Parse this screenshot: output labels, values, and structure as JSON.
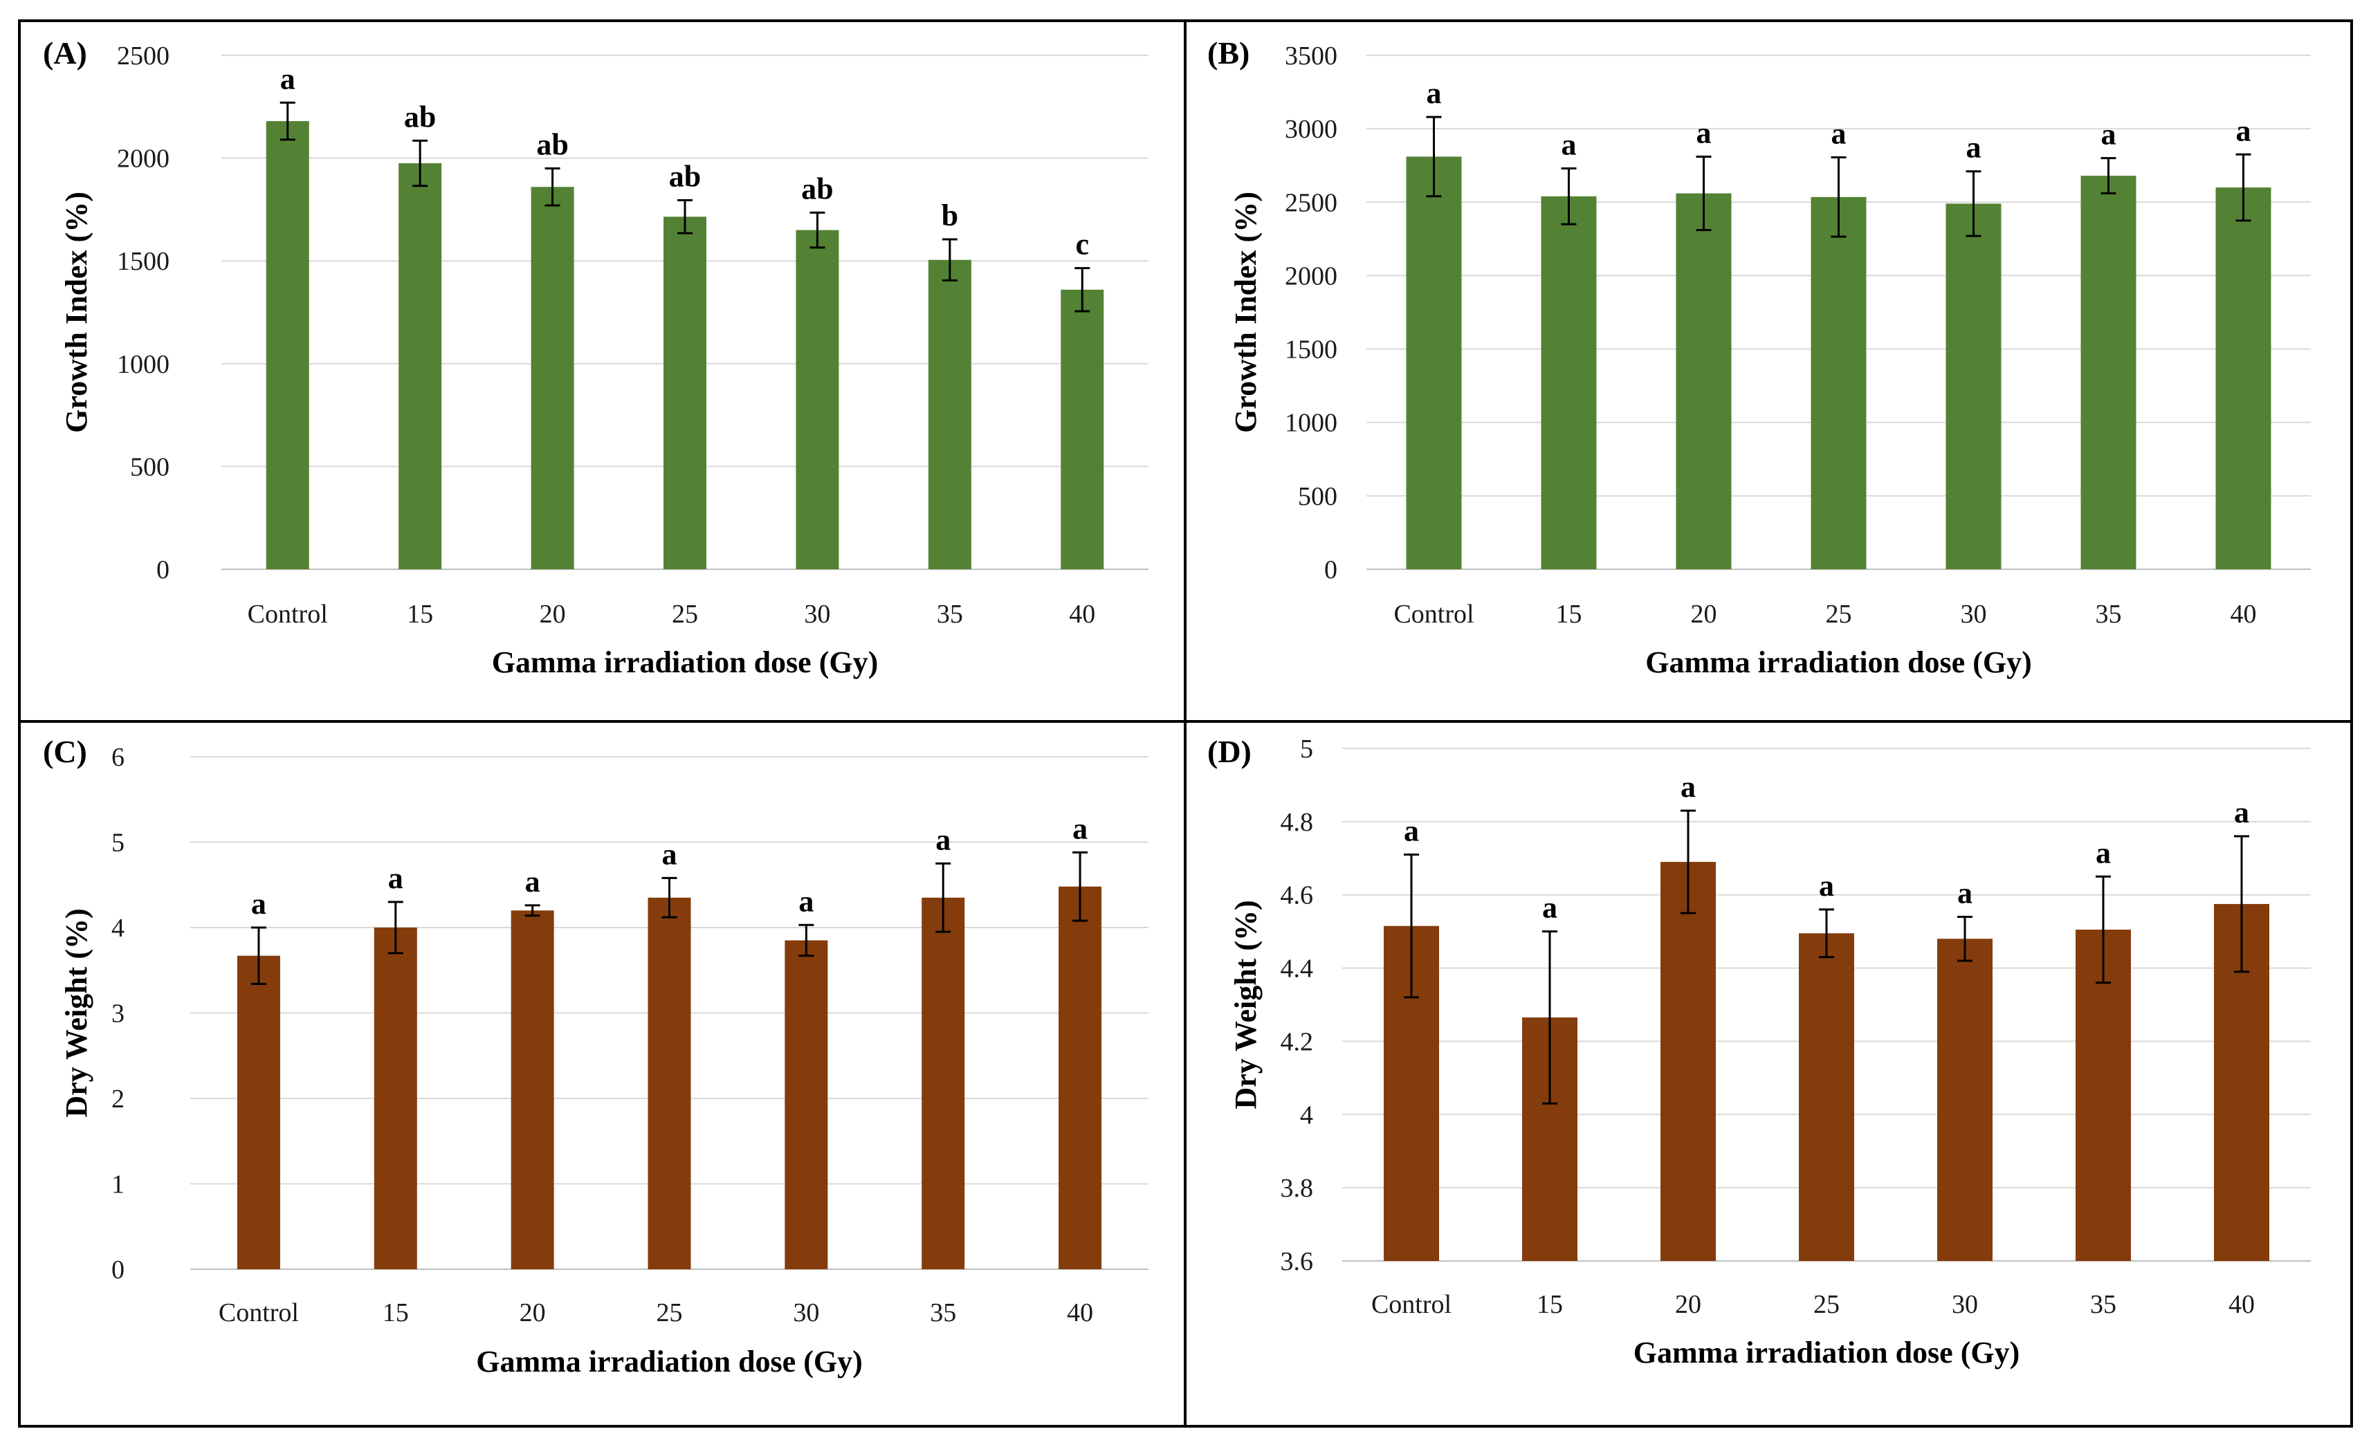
{
  "chart_data": [
    {
      "type": "bar",
      "panel_label": "(A)",
      "categories": [
        "Control",
        "15",
        "20",
        "25",
        "30",
        "35",
        "40"
      ],
      "values": [
        2180,
        1975,
        1860,
        1715,
        1650,
        1505,
        1360
      ],
      "errors": [
        90,
        110,
        90,
        80,
        85,
        100,
        105
      ],
      "significance": [
        "a",
        "ab",
        "ab",
        "ab",
        "ab",
        "b",
        "c"
      ],
      "xlabel": "Gamma irradiation dose (Gy)",
      "ylabel": "Growth Index (%)",
      "ylim": [
        0,
        2500
      ],
      "yticks": [
        0,
        500,
        1000,
        1500,
        2000,
        2500
      ],
      "ytick_labels": [
        "0",
        "500",
        "1000",
        "1500",
        "2000",
        "2500"
      ],
      "bar_color": "#548235",
      "grid": true
    },
    {
      "type": "bar",
      "panel_label": "(B)",
      "categories": [
        "Control",
        "15",
        "20",
        "25",
        "30",
        "35",
        "40"
      ],
      "values": [
        2810,
        2540,
        2560,
        2535,
        2490,
        2680,
        2600
      ],
      "errors": [
        270,
        190,
        250,
        270,
        220,
        120,
        225
      ],
      "significance": [
        "a",
        "a",
        "a",
        "a",
        "a",
        "a",
        "a"
      ],
      "xlabel": "Gamma irradiation dose (Gy)",
      "ylabel": "Growth Index (%)",
      "ylim": [
        0,
        3500
      ],
      "yticks": [
        0,
        500,
        1000,
        1500,
        2000,
        2500,
        3000,
        3500
      ],
      "ytick_labels": [
        "0",
        "500",
        "1000",
        "1500",
        "2000",
        "2500",
        "3000",
        "3500"
      ],
      "bar_color": "#548235",
      "grid": true
    },
    {
      "type": "bar",
      "panel_label": "(C)",
      "categories": [
        "Control",
        "15",
        "20",
        "25",
        "30",
        "35",
        "40"
      ],
      "values": [
        3.67,
        4.0,
        4.2,
        4.35,
        3.85,
        4.35,
        4.48
      ],
      "errors": [
        0.33,
        0.3,
        0.06,
        0.23,
        0.18,
        0.4,
        0.4
      ],
      "significance": [
        "a",
        "a",
        "a",
        "a",
        "a",
        "a",
        "a"
      ],
      "xlabel": "Gamma irradiation dose (Gy)",
      "ylabel": "Dry Weight (%)",
      "ylim": [
        0,
        6
      ],
      "yticks": [
        0,
        1,
        2,
        3,
        4,
        5,
        6
      ],
      "ytick_labels": [
        "0",
        "1",
        "2",
        "3",
        "4",
        "5",
        "6"
      ],
      "bar_color": "#843C0C",
      "grid": true
    },
    {
      "type": "bar",
      "panel_label": "(D)",
      "categories": [
        "Control",
        "15",
        "20",
        "25",
        "30",
        "35",
        "40"
      ],
      "values": [
        4.515,
        4.265,
        4.69,
        4.495,
        4.48,
        4.505,
        4.575
      ],
      "errors": [
        0.195,
        0.235,
        0.14,
        0.065,
        0.06,
        0.145,
        0.185
      ],
      "significance": [
        "a",
        "a",
        "a",
        "a",
        "a",
        "a",
        "a"
      ],
      "xlabel": "Gamma irradiation dose (Gy)",
      "ylabel": "Dry Weight (%)",
      "ylim": [
        3.6,
        5
      ],
      "yticks": [
        3.6,
        3.8,
        4.0,
        4.2,
        4.4,
        4.6,
        4.8,
        5.0
      ],
      "ytick_labels": [
        "3.6",
        "3.8",
        "4",
        "4.2",
        "4.4",
        "4.6",
        "4.8",
        "5"
      ],
      "bar_color": "#843C0C",
      "grid": true
    }
  ]
}
